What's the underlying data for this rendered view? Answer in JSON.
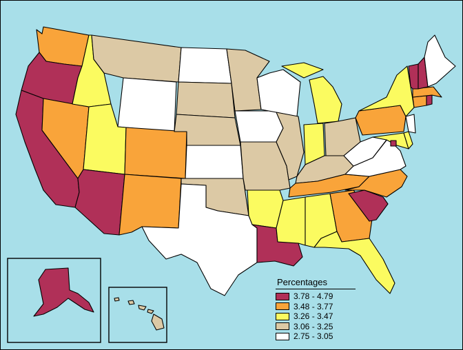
{
  "legend": {
    "title": "Percentages",
    "items": [
      {
        "label": "3.78 - 4.79",
        "color": "#b03058"
      },
      {
        "label": "3.48 - 3.77",
        "color": "#f9a43a"
      },
      {
        "label": "3.26 - 3.47",
        "color": "#fbfb60"
      },
      {
        "label": "3.06 - 3.25",
        "color": "#dcc9a5"
      },
      {
        "label": "2.75 - 3.05",
        "color": "#ffffff"
      }
    ]
  },
  "colors": {
    "water": "#a8dfe9",
    "outline": "#000000"
  },
  "states": {
    "WA": 1,
    "OR": 0,
    "CA": 0,
    "NV": 1,
    "ID": 2,
    "MT": 3,
    "WY": 4,
    "UT": 2,
    "AZ": 0,
    "CO": 1,
    "NM": 1,
    "ND": 4,
    "SD": 3,
    "NE": 3,
    "KS": 4,
    "OK": 3,
    "TX": 4,
    "MN": 3,
    "IA": 4,
    "MO": 3,
    "AR": 2,
    "LA": 0,
    "WI": 4,
    "IL": 3,
    "MS": 2,
    "MI": 2,
    "IN": 2,
    "KY": 3,
    "TN": 1,
    "AL": 2,
    "OH": 3,
    "GA": 1,
    "FL": 2,
    "SC": 0,
    "NC": 1,
    "VA": 4,
    "WV": 4,
    "PA": 1,
    "NY": 2,
    "MD": 2,
    "DE": 2,
    "NJ": 4,
    "CT": 1,
    "RI": 0,
    "MA": 1,
    "VT": 0,
    "NH": 0,
    "ME": 4,
    "DC": 0,
    "AK": 0,
    "HI": 3
  }
}
